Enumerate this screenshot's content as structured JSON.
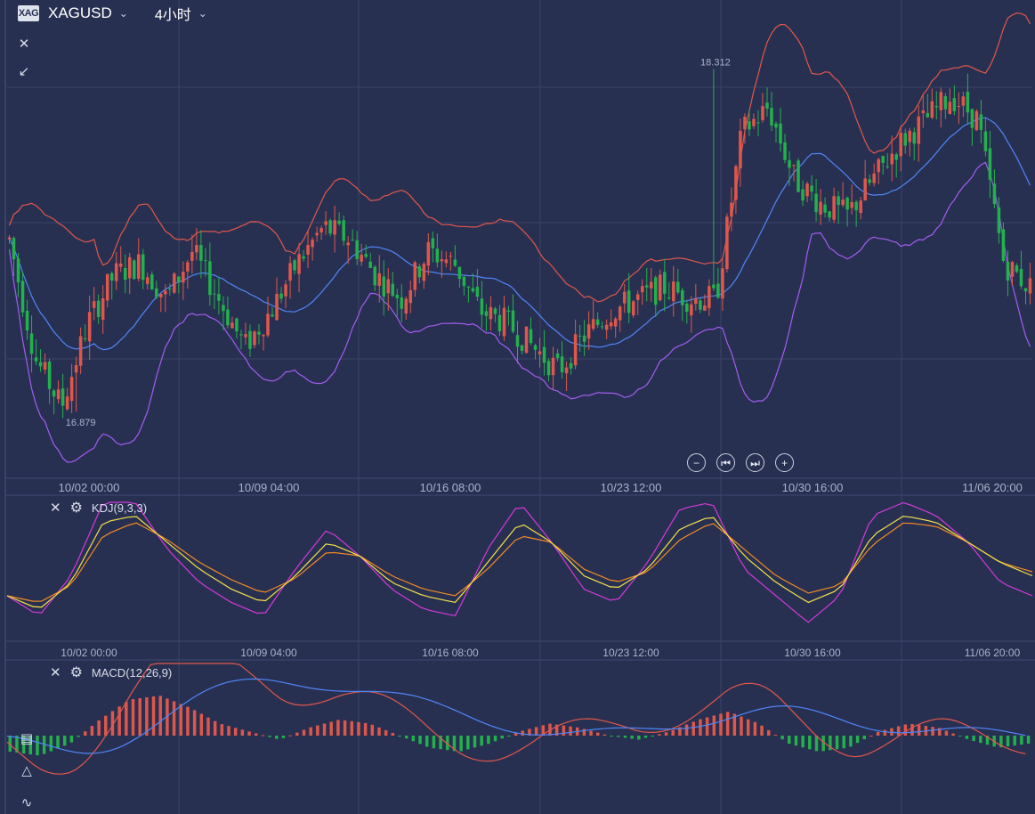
{
  "header": {
    "logo_text": "XAG",
    "symbol": "XAGUSD",
    "interval": "4小时"
  },
  "price_panel": {
    "high_label": "18.312",
    "low_label": "16.879",
    "x_ticks": [
      "10/02 00:00",
      "10/09 04:00",
      "10/16 08:00",
      "10/23 12:00",
      "10/30 16:00",
      "11/06 20:00"
    ]
  },
  "kdj_panel": {
    "label": "KDJ(9,3,3)",
    "x_ticks": [
      "10/02 00:00",
      "10/09 04:00",
      "10/16 08:00",
      "10/23 12:00",
      "10/30 16:00",
      "11/06 20:00"
    ]
  },
  "macd_panel": {
    "label": "MACD(12,26,9)"
  },
  "colors": {
    "background": "#283052",
    "grid": "#3a4265",
    "up": "#e0574a",
    "down": "#22b14c",
    "boll_upper": "#e0574a",
    "boll_mid": "#4f86f7",
    "boll_lower": "#a35cf0",
    "k": "#f5e14a",
    "d": "#f08a24",
    "j": "#d23ad8",
    "dif": "#e0574a",
    "dea": "#4f86f7"
  },
  "chart_data": [
    {
      "type": "candlestick",
      "title": "",
      "series": [
        {
          "name": "XAGUSD",
          "close_path_points": [
            17.6,
            17.1,
            16.9,
            17.25,
            17.45,
            17.5,
            17.35,
            17.55,
            17.35,
            17.15,
            17.3,
            17.5,
            17.65,
            17.6,
            17.45,
            17.35,
            17.55,
            17.5,
            17.3,
            17.25,
            17.15,
            17.05,
            17.2,
            17.3,
            17.35,
            17.4,
            17.35,
            17.35,
            18.05,
            18.15,
            17.85,
            17.75,
            17.7,
            17.85,
            18.0,
            18.1,
            18.2,
            18.1,
            17.5,
            17.4
          ]
        }
      ],
      "y_range": [
        16.6,
        18.6
      ],
      "annotations": [
        "18.312",
        "16.879"
      ]
    },
    {
      "type": "line",
      "title": "KDJ(9,3,3)",
      "series": [
        {
          "name": "K",
          "values": [
            30,
            20,
            40,
            85,
            90,
            70,
            50,
            35,
            25,
            45,
            70,
            60,
            40,
            30,
            25,
            55,
            85,
            70,
            45,
            35,
            50,
            80,
            90,
            60,
            40,
            25,
            35,
            75,
            90,
            85,
            70,
            55,
            45
          ]
        },
        {
          "name": "D",
          "values": [
            30,
            25,
            38,
            75,
            85,
            72,
            55,
            42,
            32,
            43,
            63,
            60,
            45,
            35,
            30,
            50,
            75,
            70,
            50,
            40,
            48,
            72,
            85,
            65,
            45,
            32,
            38,
            68,
            85,
            82,
            70,
            55,
            48
          ]
        },
        {
          "name": "J",
          "values": [
            30,
            15,
            45,
            100,
            100,
            65,
            40,
            25,
            15,
            50,
            80,
            60,
            35,
            20,
            15,
            65,
            100,
            70,
            35,
            25,
            55,
            95,
            100,
            50,
            30,
            10,
            30,
            90,
            100,
            90,
            70,
            40,
            30
          ]
        }
      ]
    },
    {
      "type": "bar",
      "title": "MACD(12,26,9)",
      "series": [
        {
          "name": "MACD histogram",
          "values": [
            -0.04,
            -0.05,
            -0.02,
            0.04,
            0.09,
            0.1,
            0.07,
            0.03,
            0.01,
            -0.01,
            0.02,
            0.04,
            0.03,
            0.0,
            -0.03,
            -0.04,
            -0.02,
            0.01,
            0.03,
            0.02,
            0.0,
            -0.01,
            0.01,
            0.04,
            0.06,
            0.03,
            -0.02,
            -0.04,
            -0.03,
            0.01,
            0.03,
            0.02,
            -0.01,
            -0.03,
            -0.02
          ]
        }
      ]
    }
  ]
}
